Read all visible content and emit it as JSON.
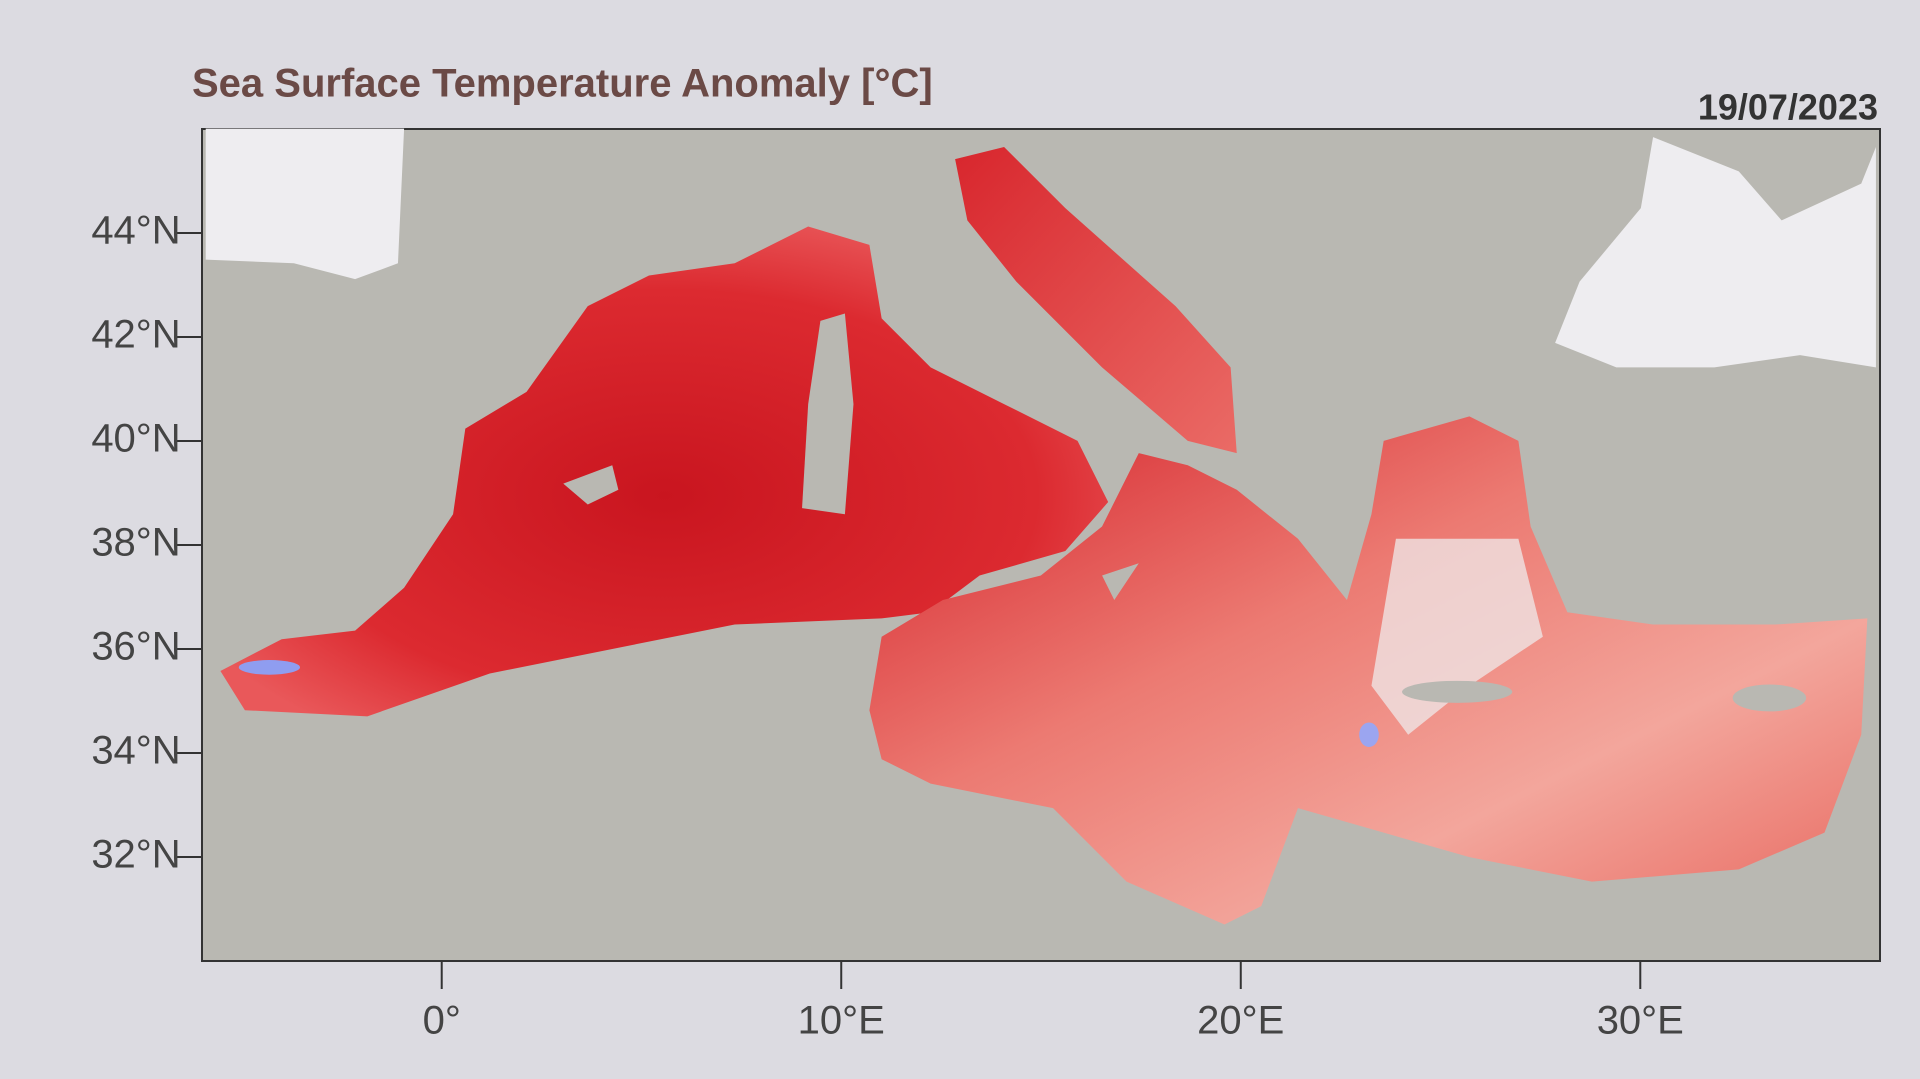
{
  "chart_data": {
    "type": "map",
    "title": "Sea Surface Temperature Anomaly [°C]",
    "date": "19/07/2023",
    "xlim": [
      -6,
      36
    ],
    "ylim": [
      30,
      46
    ],
    "xticks": [
      {
        "value": 0,
        "label": "0°"
      },
      {
        "value": 10,
        "label": "10°E"
      },
      {
        "value": 20,
        "label": "20°E"
      },
      {
        "value": 30,
        "label": "30°E"
      }
    ],
    "yticks": [
      {
        "value": 44,
        "label": "44°N"
      },
      {
        "value": 42,
        "label": "42°N"
      },
      {
        "value": 40,
        "label": "40°N"
      },
      {
        "value": 38,
        "label": "38°N"
      },
      {
        "value": 36,
        "label": "36°N"
      },
      {
        "value": 34,
        "label": "34°N"
      },
      {
        "value": 32,
        "label": "32°N"
      }
    ]
  }
}
